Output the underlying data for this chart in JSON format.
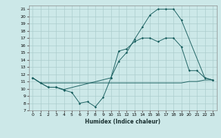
{
  "xlabel": "Humidex (Indice chaleur)",
  "bg_color": "#cce8e8",
  "grid_color": "#aacccc",
  "line_color": "#1a6060",
  "xlim": [
    -0.5,
    23.5
  ],
  "ylim": [
    7,
    21.5
  ],
  "yticks": [
    7,
    8,
    9,
    10,
    11,
    12,
    13,
    14,
    15,
    16,
    17,
    18,
    19,
    20,
    21
  ],
  "xticks": [
    0,
    1,
    2,
    3,
    4,
    5,
    6,
    7,
    8,
    9,
    10,
    11,
    12,
    13,
    14,
    15,
    16,
    17,
    18,
    19,
    20,
    21,
    22,
    23
  ],
  "line1_x": [
    0,
    1,
    2,
    3,
    4,
    10,
    11,
    12,
    13,
    14,
    15,
    16,
    17,
    18,
    19,
    22,
    23
  ],
  "line1_y": [
    11.5,
    10.8,
    10.2,
    10.2,
    9.9,
    11.5,
    13.8,
    15.0,
    16.8,
    18.5,
    20.2,
    21.0,
    21.0,
    21.0,
    19.5,
    11.5,
    11.2
  ],
  "line2_x": [
    0,
    1,
    2,
    3,
    4,
    5,
    6,
    7,
    8,
    9,
    10,
    11,
    12,
    13,
    14,
    15,
    16,
    17,
    18,
    19,
    20,
    21,
    22,
    23
  ],
  "line2_y": [
    11.5,
    10.8,
    10.2,
    10.2,
    9.8,
    9.5,
    8.0,
    8.2,
    7.5,
    8.8,
    11.5,
    15.2,
    15.5,
    16.5,
    17.0,
    17.0,
    16.5,
    17.0,
    17.0,
    15.8,
    12.5,
    12.5,
    11.5,
    11.2
  ],
  "line3_x": [
    0,
    1,
    2,
    3,
    4,
    5,
    6,
    7,
    8,
    9,
    10,
    11,
    12,
    13,
    14,
    15,
    16,
    17,
    18,
    19,
    20,
    21,
    22,
    23
  ],
  "line3_y": [
    11.5,
    10.8,
    10.8,
    10.8,
    10.8,
    10.8,
    10.8,
    10.8,
    10.8,
    10.8,
    10.8,
    10.8,
    10.8,
    10.8,
    10.8,
    10.8,
    10.8,
    10.8,
    10.8,
    10.8,
    11.0,
    11.0,
    11.2,
    11.2
  ]
}
